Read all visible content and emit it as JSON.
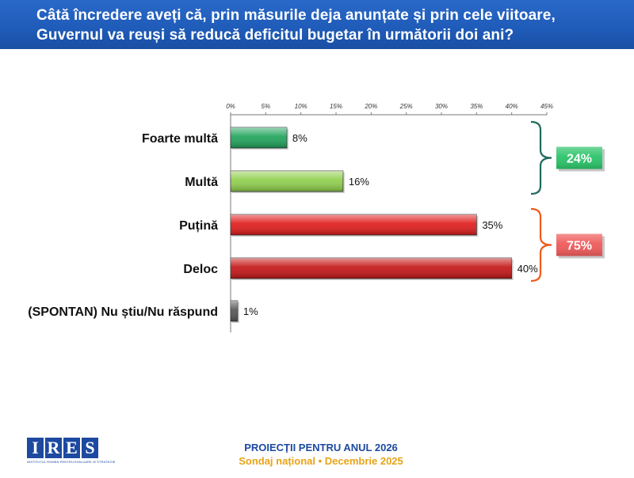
{
  "header": {
    "question_line1": "Câtă încredere aveți că, prin măsurile deja anunțate și prin cele viitoare,",
    "question_line2": "Guvernul va reuși să reducă deficitul bugetar în următorii doi ani?"
  },
  "chart_data": {
    "type": "bar",
    "orientation": "horizontal",
    "title": "Câtă încredere aveți că, prin măsurile deja anunțate și prin cele viitoare, Guvernul va reuși să reducă deficitul bugetar în următorii doi ani?",
    "categories": [
      "Foarte multă",
      "Multă",
      "Puțină",
      "Deloc",
      "(SPONTAN) Nu știu/Nu răspund"
    ],
    "values": [
      8,
      16,
      35,
      40,
      1
    ],
    "value_labels": [
      "8%",
      "16%",
      "35%",
      "40%",
      "1%"
    ],
    "bar_colors": [
      "#1fa35a",
      "#8fcf4c",
      "#e01b1b",
      "#c41515",
      "#555555"
    ],
    "xlim": [
      0,
      45
    ],
    "ticks": [
      0,
      5,
      10,
      15,
      20,
      25,
      30,
      35,
      40,
      45
    ],
    "tick_labels": [
      "0%",
      "5%",
      "10%",
      "15%",
      "20%",
      "25%",
      "30%",
      "35%",
      "40%",
      "45%"
    ],
    "xlabel": "",
    "ylabel": "",
    "grid": false,
    "groups": [
      {
        "label": "24%",
        "categories": [
          "Foarte multă",
          "Multă"
        ],
        "bracket_color": "#1e6b5e",
        "badge_color": "#2cc46a"
      },
      {
        "label": "75%",
        "categories": [
          "Puțină",
          "Deloc"
        ],
        "bracket_color": "#f05a1a",
        "badge_color": "#ef5b5b"
      }
    ]
  },
  "footer": {
    "logo_letters": [
      "I",
      "R",
      "E",
      "S"
    ],
    "logo_subtitle": "INSTITUTUL ROMÂN PENTRU EVALUARE ȘI STRATEGIE",
    "title": "PROIECȚII PENTRU ANUL 2026",
    "subtitle": "Sondaj național • Decembrie 2025"
  }
}
